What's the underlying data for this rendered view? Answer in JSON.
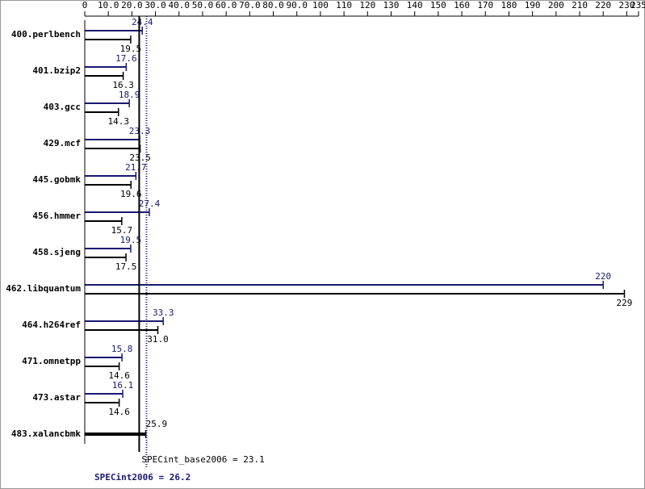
{
  "chart_data": {
    "type": "bar",
    "orientation": "horizontal",
    "categories": [
      "400.perlbench",
      "401.bzip2",
      "403.gcc",
      "429.mcf",
      "445.gobmk",
      "456.hmmer",
      "458.sjeng",
      "462.libquantum",
      "464.h264ref",
      "471.omnetpp",
      "473.astar",
      "483.xalancbmk"
    ],
    "series": [
      {
        "name": "SPECint2006",
        "color": "#191970",
        "values": [
          24.4,
          17.6,
          18.9,
          23.3,
          21.7,
          27.4,
          19.5,
          220,
          33.3,
          15.8,
          16.1,
          null
        ],
        "value_labels": [
          "24.4",
          "17.6",
          "18.9",
          "23.3",
          "21.7",
          "27.4",
          "19.5",
          "220",
          "33.3",
          "15.8",
          "16.1",
          null
        ]
      },
      {
        "name": "SPECint_base2006",
        "color": "#000000",
        "values": [
          19.5,
          16.3,
          14.3,
          23.5,
          19.6,
          15.7,
          17.5,
          229,
          31.0,
          14.6,
          14.6,
          25.9
        ],
        "value_labels": [
          "19.5",
          "16.3",
          "14.3",
          "23.5",
          "19.6",
          "15.7",
          "17.5",
          "229",
          "31.0",
          "14.6",
          "14.6",
          "25.9"
        ]
      }
    ],
    "xlim": [
      0,
      235
    ],
    "xticks": [
      0,
      {
        "value": 10,
        "label": "10.0"
      },
      {
        "value": 20,
        "label": "20.0"
      },
      {
        "value": 30,
        "label": "30.0"
      },
      {
        "value": 40,
        "label": "40.0"
      },
      {
        "value": 50,
        "label": "50.0"
      },
      {
        "value": 60,
        "label": "60.0"
      },
      {
        "value": 70,
        "label": "70.0"
      },
      {
        "value": 80,
        "label": "80.0"
      },
      {
        "value": 90,
        "label": "90.0"
      },
      100,
      110,
      120,
      130,
      140,
      150,
      160,
      170,
      180,
      190,
      200,
      210,
      220,
      230,
      235
    ],
    "reference_lines": [
      {
        "value": 23.1,
        "label": "SPECint_base2006 = 23.1",
        "color": "#000000",
        "style": "solid"
      },
      {
        "value": 26.2,
        "label": "SPECint2006 = 26.2",
        "color": "#191970",
        "style": "dotted"
      }
    ]
  }
}
